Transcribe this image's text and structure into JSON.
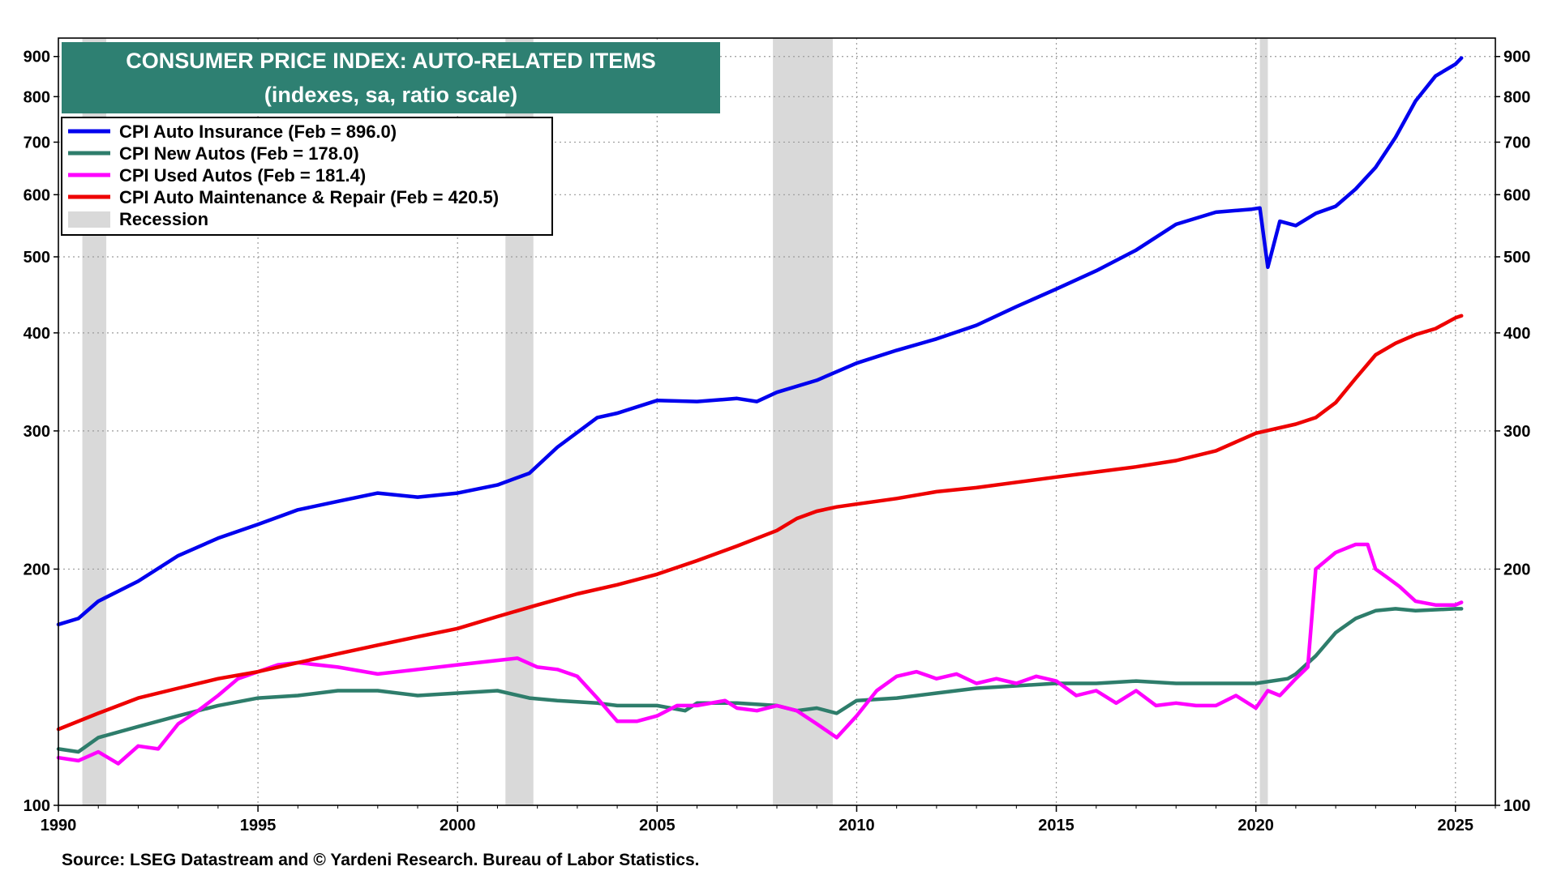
{
  "chart_data": {
    "type": "line",
    "title": "CONSUMER PRICE INDEX: AUTO-RELATED ITEMS",
    "subtitle": "(indexes, sa, ratio scale)",
    "source": "Source: LSEG Datastream and © Yardeni Research. Bureau of Labor Statistics.",
    "y_scale": "log",
    "xlim": [
      1990,
      2026
    ],
    "ylim": [
      100,
      950
    ],
    "x_ticks": [
      "1990",
      "1995",
      "2000",
      "2005",
      "2010",
      "2015",
      "2020",
      "2025"
    ],
    "y_ticks": [
      "100",
      "200",
      "300",
      "400",
      "500",
      "600",
      "700",
      "800",
      "900"
    ],
    "recessions": [
      [
        1990.6,
        1991.2
      ],
      [
        2001.2,
        2001.9
      ],
      [
        2007.9,
        2009.4
      ],
      [
        2020.1,
        2020.3
      ]
    ],
    "legend": {
      "recession_label": "Recession",
      "placement": "top-left"
    },
    "series": [
      {
        "name": "CPI Auto Insurance (Feb = 896.0)",
        "color": "#0000ee",
        "x": [
          1990,
          1990.5,
          1991,
          1992,
          1993,
          1994,
          1995,
          1996,
          1997,
          1998,
          1999,
          2000,
          2001,
          2001.8,
          2002.5,
          2003.5,
          2004,
          2005,
          2006,
          2007,
          2007.5,
          2008,
          2009,
          2010,
          2011,
          2012,
          2013,
          2014,
          2015,
          2016,
          2017,
          2018,
          2019,
          2019.9,
          2020.1,
          2020.3,
          2020.6,
          2021,
          2021.5,
          2022,
          2022.5,
          2023,
          2023.5,
          2024,
          2024.5,
          2025,
          2025.15
        ],
        "values": [
          170,
          173,
          182,
          193,
          208,
          219,
          228,
          238,
          244,
          250,
          247,
          250,
          256,
          265,
          286,
          312,
          316,
          328,
          327,
          330,
          327,
          336,
          348,
          366,
          380,
          393,
          409,
          432,
          455,
          480,
          510,
          550,
          570,
          575,
          577,
          485,
          555,
          548,
          568,
          580,
          610,
          650,
          710,
          790,
          850,
          880,
          896
        ]
      },
      {
        "name": "CPI New Autos (Feb = 178.0)",
        "color": "#2e7d6b",
        "x": [
          1990,
          1990.5,
          1991,
          1992,
          1993,
          1994,
          1995,
          1996,
          1997,
          1998,
          1999,
          2000,
          2001,
          2001.8,
          2002.5,
          2003.5,
          2004,
          2005,
          2005.7,
          2006,
          2007,
          2008,
          2008.5,
          2009,
          2009.5,
          2010,
          2011,
          2012,
          2013,
          2014,
          2015,
          2016,
          2017,
          2018,
          2019,
          2020,
          2020.8,
          2021,
          2021.5,
          2022,
          2022.5,
          2023,
          2023.5,
          2024,
          2025,
          2025.15
        ],
        "values": [
          118,
          117,
          122,
          126,
          130,
          134,
          137,
          138,
          140,
          140,
          138,
          139,
          140,
          137,
          136,
          135,
          134,
          134,
          132,
          135,
          135,
          134,
          132,
          133,
          131,
          136,
          137,
          139,
          141,
          142,
          143,
          143,
          144,
          143,
          143,
          143,
          145,
          147,
          155,
          166,
          173,
          177,
          178,
          177,
          178,
          178
        ]
      },
      {
        "name": "CPI Used Autos (Feb = 181.4)",
        "color": "#ff00ff",
        "x": [
          1990,
          1990.5,
          1991,
          1991.5,
          1992,
          1992.5,
          1993,
          1993.5,
          1994,
          1994.5,
          1995,
          1995.5,
          1996,
          1997,
          1998,
          1999,
          2000,
          2001,
          2001.5,
          2002,
          2002.5,
          2003,
          2003.5,
          2004,
          2004.5,
          2005,
          2005.5,
          2006,
          2006.7,
          2007,
          2007.5,
          2008,
          2008.5,
          2009,
          2009.5,
          2010,
          2010.5,
          2011,
          2011.5,
          2012,
          2012.5,
          2013,
          2013.5,
          2014,
          2014.5,
          2015,
          2015.5,
          2016,
          2016.5,
          2017,
          2017.5,
          2018,
          2018.5,
          2019,
          2019.5,
          2020,
          2020.3,
          2020.6,
          2021,
          2021.3,
          2021.5,
          2022,
          2022.5,
          2022.8,
          2023,
          2023.3,
          2023.6,
          2024,
          2024.5,
          2025,
          2025.15
        ],
        "values": [
          115,
          114,
          117,
          113,
          119,
          118,
          127,
          132,
          138,
          145,
          148,
          151,
          152,
          150,
          147,
          149,
          151,
          153,
          154,
          150,
          149,
          146,
          137,
          128,
          128,
          130,
          134,
          134,
          136,
          133,
          132,
          134,
          132,
          127,
          122,
          130,
          140,
          146,
          148,
          145,
          147,
          143,
          145,
          143,
          146,
          144,
          138,
          140,
          135,
          140,
          134,
          135,
          134,
          134,
          138,
          133,
          140,
          138,
          145,
          150,
          200,
          210,
          215,
          215,
          200,
          195,
          190,
          182,
          180,
          180,
          181.4
        ]
      },
      {
        "name": "CPI Auto Maintenance & Repair (Feb = 420.5)",
        "color": "#ee0000",
        "x": [
          1990,
          1991,
          1992,
          1993,
          1994,
          1995,
          1996,
          1997,
          1998,
          1999,
          2000,
          2001,
          2002,
          2003,
          2004,
          2005,
          2006,
          2007,
          2008,
          2008.5,
          2009,
          2009.5,
          2010,
          2011,
          2012,
          2013,
          2014,
          2015,
          2016,
          2017,
          2018,
          2019,
          2020,
          2021,
          2021.5,
          2022,
          2022.5,
          2023,
          2023.5,
          2024,
          2024.5,
          2025,
          2025.15
        ],
        "values": [
          125,
          131,
          137,
          141,
          145,
          148,
          152,
          156,
          160,
          164,
          168,
          174,
          180,
          186,
          191,
          197,
          205,
          214,
          224,
          232,
          237,
          240,
          242,
          246,
          251,
          254,
          258,
          262,
          266,
          270,
          275,
          283,
          298,
          306,
          312,
          326,
          350,
          375,
          388,
          398,
          405,
          418,
          420.5
        ]
      }
    ]
  }
}
